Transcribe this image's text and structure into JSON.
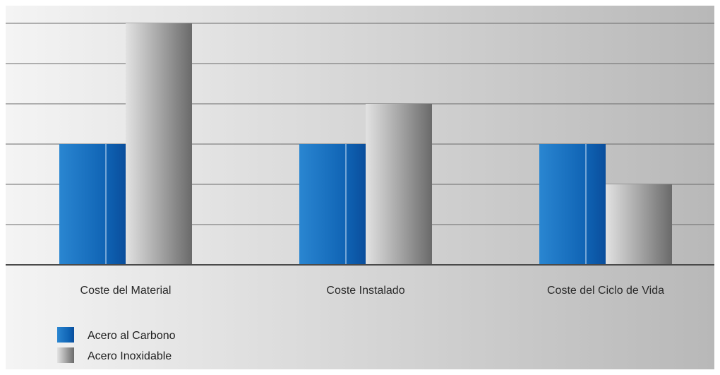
{
  "chart_data": {
    "type": "bar",
    "title": "",
    "xlabel": "",
    "ylabel": "",
    "categories": [
      "Coste del Material",
      "Coste Instalado",
      "Coste del Ciclo de Vida"
    ],
    "series": [
      {
        "name": "Acero al Carbono",
        "values": [
          3,
          3,
          3
        ],
        "color": "#1565c0"
      },
      {
        "name": "Acero Inoxidable",
        "values": [
          6,
          4,
          2
        ],
        "color": "#9e9e9e"
      }
    ],
    "ylim": [
      0,
      6
    ],
    "y_ticks_shown": false,
    "grid": true,
    "legend_position": "bottom-left"
  }
}
